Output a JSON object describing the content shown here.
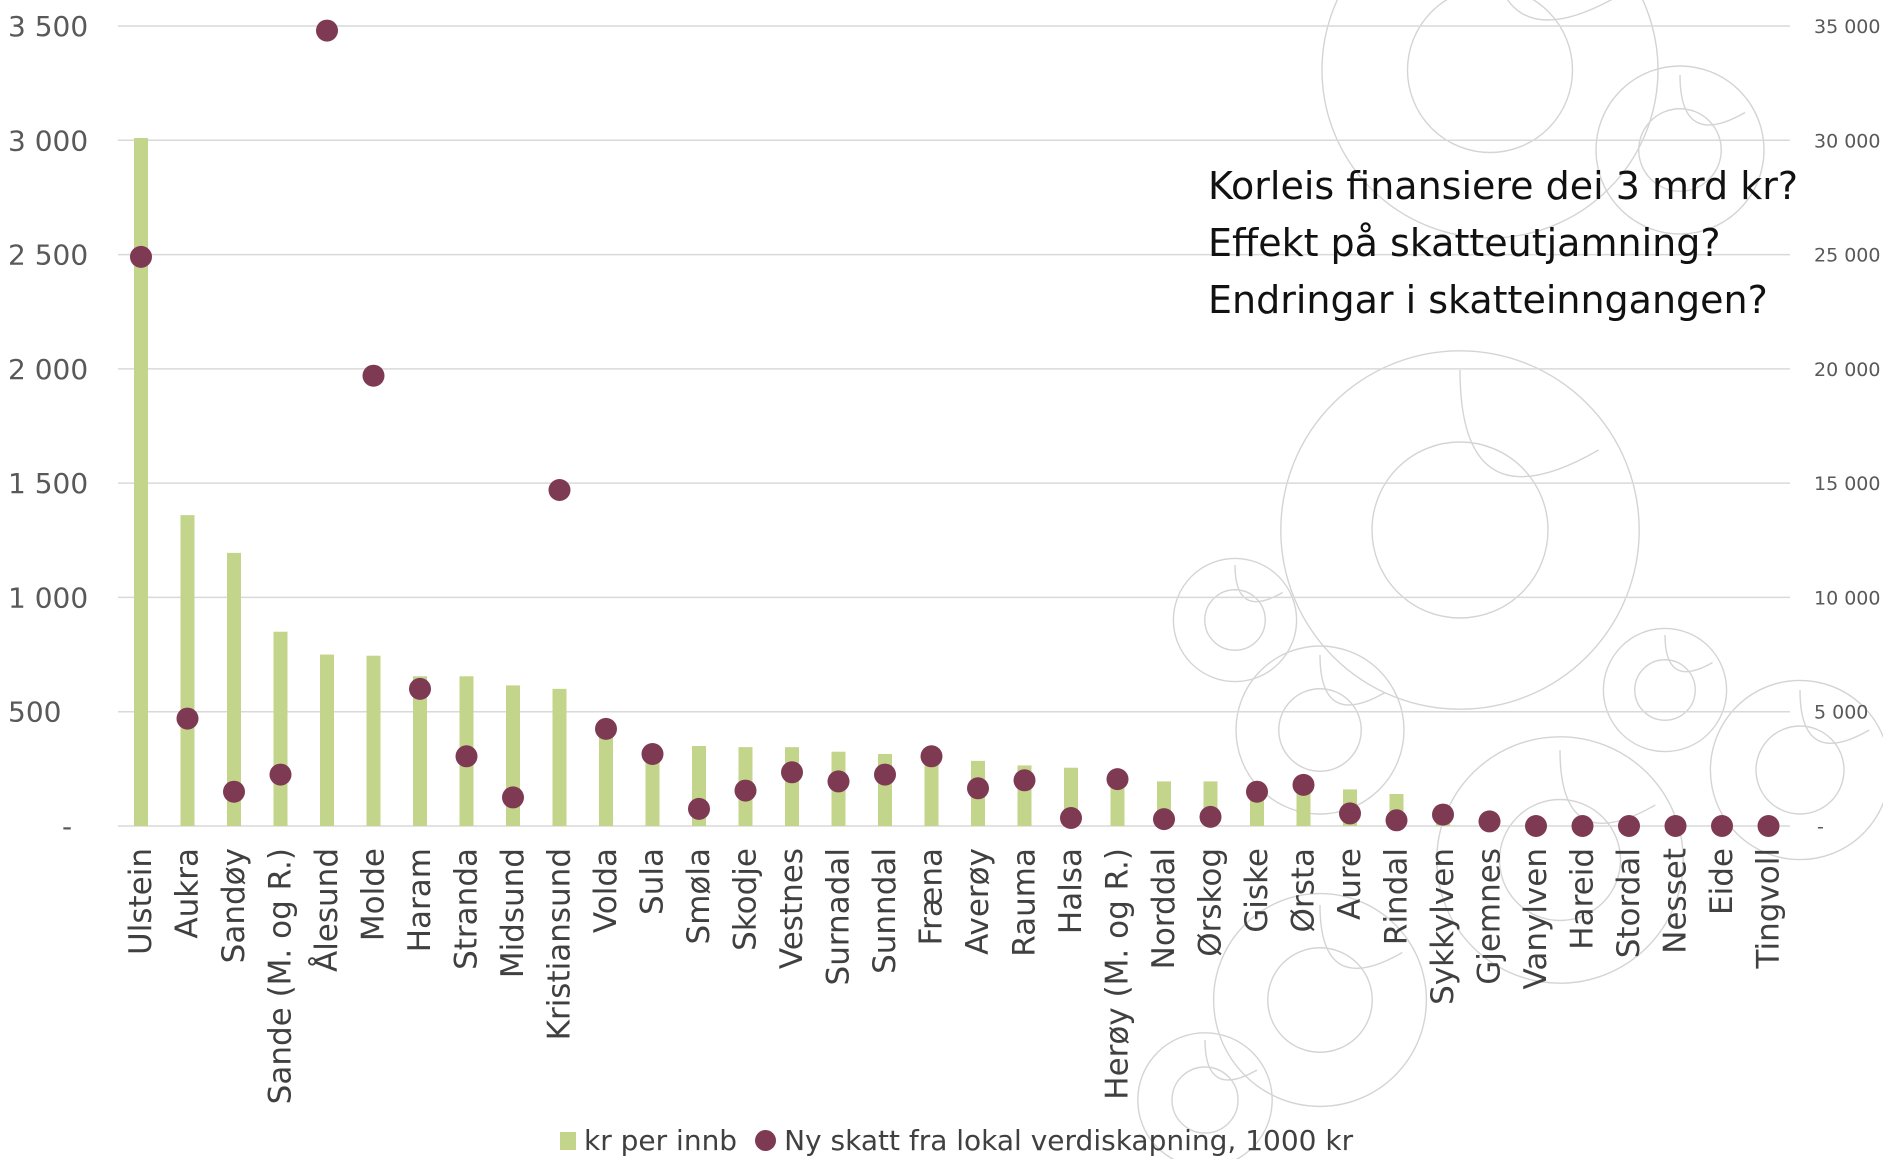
{
  "chart_data": {
    "type": "bar",
    "categories": [
      "Ulstein",
      "Aukra",
      "Sandøy",
      "Sande (M. og R.)",
      "Ålesund",
      "Molde",
      "Haram",
      "Stranda",
      "Midsund",
      "Kristiansund",
      "Volda",
      "Sula",
      "Smøla",
      "Skodje",
      "Vestnes",
      "Surnadal",
      "Sunndal",
      "Fræna",
      "Averøy",
      "Rauma",
      "Halsa",
      "Herøy (M. og R.)",
      "Norddal",
      "Ørskog",
      "Giske",
      "Ørsta",
      "Aure",
      "Rindal",
      "Sykkylven",
      "Gjemnes",
      "Vanylven",
      "Hareid",
      "Stordal",
      "Nesset",
      "Eide",
      "Tingvoll"
    ],
    "series": [
      {
        "name": "kr per innb",
        "axis": "left",
        "color": "#c3d48b",
        "values": [
          3010,
          1360,
          1195,
          850,
          750,
          745,
          655,
          655,
          615,
          600,
          420,
          330,
          350,
          345,
          345,
          325,
          315,
          310,
          285,
          265,
          255,
          215,
          195,
          195,
          170,
          165,
          160,
          140,
          50,
          30,
          20,
          15,
          12,
          10,
          8,
          5
        ]
      },
      {
        "name": "Ny skatt fra lokal verdiskapning, 1000 kr",
        "axis": "right",
        "color": "#7f3a53",
        "values": [
          24900,
          4700,
          1500,
          2250,
          34800,
          19700,
          6000,
          3050,
          1250,
          14700,
          4250,
          3150,
          750,
          1550,
          2350,
          1950,
          2250,
          3050,
          1650,
          2000,
          350,
          2050,
          300,
          400,
          1500,
          1800,
          550,
          250,
          500,
          200,
          0,
          0,
          0,
          0,
          0,
          0
        ]
      }
    ],
    "ylim": [
      0,
      3500
    ],
    "y_ticks": [
      0,
      500,
      1000,
      1500,
      2000,
      2500,
      3000,
      3500
    ],
    "y_tick_labels": [
      "-",
      "500",
      "1 000",
      "1 500",
      "2 000",
      "2 500",
      "3 000",
      "3 500"
    ],
    "y2lim": [
      0,
      35000
    ],
    "y2_ticks": [
      0,
      5000,
      10000,
      15000,
      20000,
      25000,
      30000,
      35000
    ],
    "y2_tick_labels": [
      "-",
      "5 000",
      "10 000",
      "15 000",
      "20 000",
      "25 000",
      "30 000",
      "35 000"
    ],
    "grid": true,
    "legend_position": "bottom",
    "annotations": [
      "Korleis finansiere dei 3 mrd kr?",
      "Effekt på skatteutjamning?",
      "Endringar i skatteinngangen?"
    ]
  },
  "legend": {
    "bar_label": "kr per innb",
    "dot_label": "Ny skatt fra lokal verdiskapning, 1000 kr"
  }
}
